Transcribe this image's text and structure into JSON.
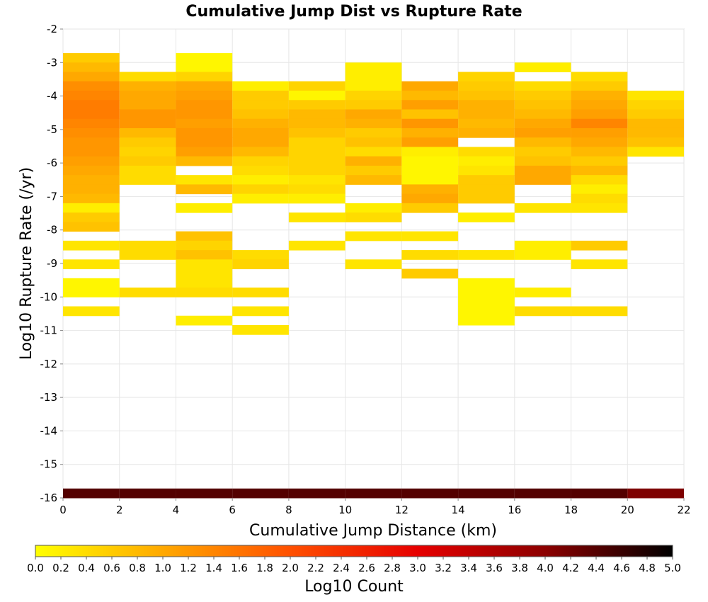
{
  "chart_data": {
    "type": "heatmap",
    "title": "Cumulative Jump Dist vs Rupture Rate",
    "xlabel": "Cumulative Jump Distance (km)",
    "ylabel": "Log10 Rupture Rate (/yr)",
    "xlim": [
      0,
      22
    ],
    "ylim": [
      -16,
      -2
    ],
    "x_ticks": [
      "0",
      "2",
      "4",
      "6",
      "8",
      "10",
      "12",
      "14",
      "16",
      "18",
      "20",
      "22"
    ],
    "y_ticks": [
      "-2",
      "-3",
      "-4",
      "-5",
      "-6",
      "-7",
      "-8",
      "-9",
      "-10",
      "-11",
      "-12",
      "-13",
      "-14",
      "-15",
      "-16"
    ],
    "colorbar": {
      "label": "Log10 Count",
      "range": [
        0,
        5
      ],
      "ticks": [
        "0.0",
        "0.2",
        "0.4",
        "0.6",
        "0.8",
        "1.0",
        "1.2",
        "1.4",
        "1.6",
        "1.8",
        "2.0",
        "2.2",
        "2.4",
        "2.6",
        "2.8",
        "3.0",
        "3.2",
        "3.4",
        "3.6",
        "3.8",
        "4.0",
        "4.2",
        "4.4",
        "4.6",
        "4.8",
        "5.0"
      ],
      "colors": [
        "#ffff00",
        "#ffa800",
        "#ff5000",
        "#e60000",
        "#8c0000",
        "#000000"
      ]
    },
    "x_bin_width": 2,
    "y_bin_height": 0.28,
    "grid": true,
    "cells": [
      {
        "x": 0,
        "values": [
          [
            -3.0,
            0.6
          ],
          [
            -3.28,
            0.8
          ],
          [
            -3.56,
            1.0
          ],
          [
            -3.84,
            1.3
          ],
          [
            -4.12,
            1.4
          ],
          [
            -4.4,
            1.5
          ],
          [
            -4.68,
            1.5
          ],
          [
            -4.96,
            1.4
          ],
          [
            -5.24,
            1.3
          ],
          [
            -5.52,
            1.2
          ],
          [
            -5.8,
            1.2
          ],
          [
            -6.08,
            1.1
          ],
          [
            -6.36,
            1.0
          ],
          [
            -6.64,
            0.9
          ],
          [
            -6.92,
            0.9
          ],
          [
            -7.2,
            0.8
          ],
          [
            -7.48,
            0.2
          ],
          [
            -7.76,
            0.6
          ],
          [
            -8.04,
            0.7
          ],
          [
            -8.6,
            0.3
          ],
          [
            -9.16,
            0.3
          ],
          [
            -9.72,
            0.1
          ],
          [
            -10.0,
            0.1
          ],
          [
            -10.56,
            0.3
          ],
          [
            -16.0,
            4.4
          ]
        ]
      },
      {
        "x": 2,
        "values": [
          [
            -3.56,
            0.4
          ],
          [
            -3.84,
            0.9
          ],
          [
            -4.12,
            1.0
          ],
          [
            -4.4,
            1.0
          ],
          [
            -4.68,
            1.2
          ],
          [
            -4.96,
            1.2
          ],
          [
            -5.24,
            0.8
          ],
          [
            -5.52,
            0.6
          ],
          [
            -5.8,
            0.5
          ],
          [
            -6.08,
            0.6
          ],
          [
            -6.36,
            0.4
          ],
          [
            -6.64,
            0.4
          ],
          [
            -8.6,
            0.4
          ],
          [
            -8.88,
            0.4
          ],
          [
            -10.0,
            0.4
          ],
          [
            -16.0,
            4.4
          ]
        ]
      },
      {
        "x": 4,
        "values": [
          [
            -3.0,
            0.1
          ],
          [
            -3.28,
            0.1
          ],
          [
            -3.56,
            0.5
          ],
          [
            -3.84,
            1.0
          ],
          [
            -4.12,
            1.1
          ],
          [
            -4.4,
            1.2
          ],
          [
            -4.68,
            1.2
          ],
          [
            -4.96,
            1.1
          ],
          [
            -5.24,
            1.2
          ],
          [
            -5.52,
            1.2
          ],
          [
            -5.8,
            1.1
          ],
          [
            -6.08,
            0.8
          ],
          [
            -6.64,
            0.3
          ],
          [
            -6.92,
            0.8
          ],
          [
            -7.48,
            0.2
          ],
          [
            -8.32,
            0.7
          ],
          [
            -8.6,
            0.5
          ],
          [
            -8.88,
            0.7
          ],
          [
            -9.16,
            0.3
          ],
          [
            -9.44,
            0.3
          ],
          [
            -9.72,
            0.3
          ],
          [
            -10.0,
            0.4
          ],
          [
            -10.84,
            0.2
          ],
          [
            -16.0,
            4.4
          ]
        ]
      },
      {
        "x": 6,
        "values": [
          [
            -3.84,
            0.2
          ],
          [
            -4.12,
            0.6
          ],
          [
            -4.4,
            0.6
          ],
          [
            -4.68,
            0.7
          ],
          [
            -4.96,
            0.9
          ],
          [
            -5.24,
            1.0
          ],
          [
            -5.52,
            1.0
          ],
          [
            -5.8,
            0.8
          ],
          [
            -6.08,
            0.5
          ],
          [
            -6.36,
            0.4
          ],
          [
            -6.64,
            0.2
          ],
          [
            -6.92,
            0.5
          ],
          [
            -7.2,
            0.2
          ],
          [
            -8.88,
            0.4
          ],
          [
            -9.16,
            0.5
          ],
          [
            -10.0,
            0.4
          ],
          [
            -10.56,
            0.3
          ],
          [
            -11.12,
            0.3
          ],
          [
            -16.0,
            4.4
          ]
        ]
      },
      {
        "x": 8,
        "values": [
          [
            -3.84,
            0.5
          ],
          [
            -4.12,
            0.1
          ],
          [
            -4.4,
            0.6
          ],
          [
            -4.68,
            0.8
          ],
          [
            -4.96,
            0.8
          ],
          [
            -5.24,
            0.7
          ],
          [
            -5.52,
            0.5
          ],
          [
            -5.8,
            0.5
          ],
          [
            -6.08,
            0.5
          ],
          [
            -6.36,
            0.5
          ],
          [
            -6.64,
            0.3
          ],
          [
            -6.92,
            0.4
          ],
          [
            -7.2,
            0.2
          ],
          [
            -7.76,
            0.3
          ],
          [
            -8.6,
            0.3
          ],
          [
            -16.0,
            4.4
          ]
        ]
      },
      {
        "x": 10,
        "values": [
          [
            -3.28,
            0.2
          ],
          [
            -3.56,
            0.2
          ],
          [
            -3.84,
            0.2
          ],
          [
            -4.12,
            0.5
          ],
          [
            -4.4,
            0.6
          ],
          [
            -4.68,
            1.0
          ],
          [
            -4.96,
            0.9
          ],
          [
            -5.24,
            0.6
          ],
          [
            -5.52,
            0.7
          ],
          [
            -5.8,
            0.4
          ],
          [
            -6.08,
            0.9
          ],
          [
            -6.36,
            0.6
          ],
          [
            -6.64,
            0.8
          ],
          [
            -7.48,
            0.2
          ],
          [
            -7.76,
            0.4
          ],
          [
            -8.32,
            0.3
          ],
          [
            -9.16,
            0.3
          ],
          [
            -16.0,
            4.4
          ]
        ]
      },
      {
        "x": 12,
        "values": [
          [
            -3.84,
            1.0
          ],
          [
            -4.12,
            0.8
          ],
          [
            -4.4,
            1.1
          ],
          [
            -4.68,
            0.7
          ],
          [
            -4.96,
            1.2
          ],
          [
            -5.24,
            0.9
          ],
          [
            -5.52,
            1.1
          ],
          [
            -5.8,
            0.2
          ],
          [
            -6.08,
            0.1
          ],
          [
            -6.36,
            0.1
          ],
          [
            -6.64,
            0.1
          ],
          [
            -6.92,
            0.9
          ],
          [
            -7.2,
            1.0
          ],
          [
            -7.48,
            0.6
          ],
          [
            -8.32,
            0.3
          ],
          [
            -8.88,
            0.4
          ],
          [
            -9.44,
            0.6
          ],
          [
            -16.0,
            4.4
          ]
        ]
      },
      {
        "x": 14,
        "values": [
          [
            -3.56,
            0.5
          ],
          [
            -3.84,
            0.6
          ],
          [
            -4.12,
            0.7
          ],
          [
            -4.4,
            0.9
          ],
          [
            -4.68,
            0.9
          ],
          [
            -4.96,
            0.8
          ],
          [
            -5.24,
            0.9
          ],
          [
            -5.8,
            0.4
          ],
          [
            -6.08,
            0.2
          ],
          [
            -6.36,
            0.3
          ],
          [
            -6.64,
            0.6
          ],
          [
            -6.92,
            0.6
          ],
          [
            -7.2,
            0.6
          ],
          [
            -7.76,
            0.2
          ],
          [
            -8.88,
            0.3
          ],
          [
            -9.72,
            0.1
          ],
          [
            -10.0,
            0.1
          ],
          [
            -10.28,
            0.1
          ],
          [
            -10.56,
            0.1
          ],
          [
            -10.84,
            0.1
          ],
          [
            -16.0,
            4.4
          ]
        ]
      },
      {
        "x": 16,
        "values": [
          [
            -3.28,
            0.2
          ],
          [
            -3.84,
            0.4
          ],
          [
            -4.12,
            0.6
          ],
          [
            -4.4,
            0.7
          ],
          [
            -4.68,
            0.8
          ],
          [
            -4.96,
            1.0
          ],
          [
            -5.24,
            1.1
          ],
          [
            -5.52,
            0.8
          ],
          [
            -5.8,
            0.6
          ],
          [
            -6.08,
            0.7
          ],
          [
            -6.36,
            1.0
          ],
          [
            -6.64,
            1.0
          ],
          [
            -7.48,
            0.3
          ],
          [
            -8.6,
            0.2
          ],
          [
            -8.88,
            0.2
          ],
          [
            -10.0,
            0.2
          ],
          [
            -10.56,
            0.4
          ],
          [
            -16.0,
            4.4
          ]
        ]
      },
      {
        "x": 18,
        "values": [
          [
            -3.56,
            0.4
          ],
          [
            -3.84,
            0.6
          ],
          [
            -4.12,
            0.9
          ],
          [
            -4.4,
            1.0
          ],
          [
            -4.68,
            1.1
          ],
          [
            -4.96,
            1.4
          ],
          [
            -5.24,
            1.1
          ],
          [
            -5.52,
            1.0
          ],
          [
            -5.8,
            0.8
          ],
          [
            -6.08,
            0.6
          ],
          [
            -6.36,
            0.8
          ],
          [
            -6.64,
            0.4
          ],
          [
            -6.92,
            0.2
          ],
          [
            -7.2,
            0.4
          ],
          [
            -7.48,
            0.3
          ],
          [
            -8.6,
            0.6
          ],
          [
            -9.16,
            0.3
          ],
          [
            -10.56,
            0.4
          ],
          [
            -16.0,
            4.4
          ]
        ]
      },
      {
        "x": 20,
        "values": [
          [
            -4.12,
            0.3
          ],
          [
            -4.4,
            0.5
          ],
          [
            -4.68,
            0.6
          ],
          [
            -4.96,
            0.8
          ],
          [
            -5.24,
            0.8
          ],
          [
            -5.52,
            0.7
          ],
          [
            -5.8,
            0.3
          ],
          [
            -16.0,
            4.1
          ]
        ]
      }
    ]
  }
}
